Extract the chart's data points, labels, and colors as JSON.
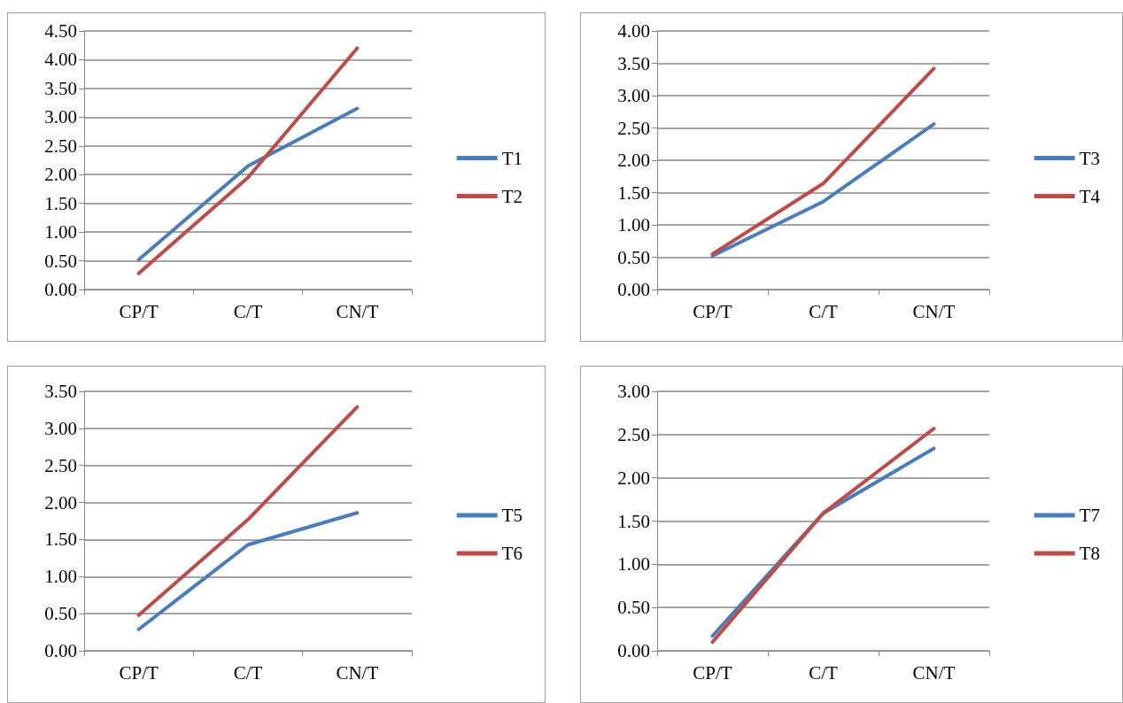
{
  "chart_data": [
    {
      "type": "line",
      "categories": [
        "CP/T",
        "C/T",
        "CN/T"
      ],
      "ylim": [
        0,
        4.5
      ],
      "yticks": [
        {
          "value": 0,
          "label": "0.00"
        },
        {
          "value": 0.5,
          "label": "0.50"
        },
        {
          "value": 1,
          "label": "1.00"
        },
        {
          "value": 1.5,
          "label": "1.50"
        },
        {
          "value": 2,
          "label": "2.00"
        },
        {
          "value": 2.5,
          "label": "2.50"
        },
        {
          "value": 3,
          "label": "3.00"
        },
        {
          "value": 3.5,
          "label": "3.50"
        },
        {
          "value": 4,
          "label": "4.00"
        },
        {
          "value": 4.5,
          "label": "4.50"
        }
      ],
      "grid": "y",
      "legend": "right",
      "marker": "none",
      "line_style": "solid",
      "series": [
        {
          "name": "T1",
          "color": "#4a7ebb",
          "values": [
            0.52,
            2.15,
            3.15
          ]
        },
        {
          "name": "T2",
          "color": "#be4b48",
          "values": [
            0.28,
            1.95,
            4.2
          ]
        }
      ]
    },
    {
      "type": "line",
      "categories": [
        "CP/T",
        "C/T",
        "CN/T"
      ],
      "ylim": [
        0,
        4
      ],
      "yticks": [
        {
          "value": 0,
          "label": "0.00"
        },
        {
          "value": 0.5,
          "label": "0.50"
        },
        {
          "value": 1,
          "label": "1.00"
        },
        {
          "value": 1.5,
          "label": "1.50"
        },
        {
          "value": 2,
          "label": "2.00"
        },
        {
          "value": 2.5,
          "label": "2.50"
        },
        {
          "value": 3,
          "label": "3.00"
        },
        {
          "value": 3.5,
          "label": "3.50"
        },
        {
          "value": 4,
          "label": "4.00"
        }
      ],
      "grid": "y",
      "legend": "right",
      "marker": "none",
      "line_style": "solid",
      "series": [
        {
          "name": "T3",
          "color": "#4a7ebb",
          "values": [
            0.52,
            1.36,
            2.56
          ]
        },
        {
          "name": "T4",
          "color": "#be4b48",
          "values": [
            0.55,
            1.64,
            3.42
          ]
        }
      ]
    },
    {
      "type": "line",
      "categories": [
        "CP/T",
        "C/T",
        "CN/T"
      ],
      "ylim": [
        0,
        3.5
      ],
      "yticks": [
        {
          "value": 0,
          "label": "0.00"
        },
        {
          "value": 0.5,
          "label": "0.50"
        },
        {
          "value": 1,
          "label": "1.00"
        },
        {
          "value": 1.5,
          "label": "1.50"
        },
        {
          "value": 2,
          "label": "2.00"
        },
        {
          "value": 2.5,
          "label": "2.50"
        },
        {
          "value": 3,
          "label": "3.00"
        },
        {
          "value": 3.5,
          "label": "3.50"
        }
      ],
      "grid": "y",
      "legend": "right",
      "marker": "none",
      "line_style": "solid",
      "series": [
        {
          "name": "T5",
          "color": "#4a7ebb",
          "values": [
            0.29,
            1.43,
            1.86
          ]
        },
        {
          "name": "T6",
          "color": "#be4b48",
          "values": [
            0.48,
            1.77,
            3.29
          ]
        }
      ]
    },
    {
      "type": "line",
      "categories": [
        "CP/T",
        "C/T",
        "CN/T"
      ],
      "ylim": [
        0,
        3
      ],
      "yticks": [
        {
          "value": 0,
          "label": "0.00"
        },
        {
          "value": 0.5,
          "label": "0.50"
        },
        {
          "value": 1,
          "label": "1.00"
        },
        {
          "value": 1.5,
          "label": "1.50"
        },
        {
          "value": 2,
          "label": "2.00"
        },
        {
          "value": 2.5,
          "label": "2.50"
        },
        {
          "value": 3,
          "label": "3.00"
        }
      ],
      "grid": "y",
      "legend": "right",
      "marker": "none",
      "line_style": "solid",
      "series": [
        {
          "name": "T7",
          "color": "#4a7ebb",
          "values": [
            0.17,
            1.59,
            2.34
          ]
        },
        {
          "name": "T8",
          "color": "#be4b48",
          "values": [
            0.1,
            1.59,
            2.57
          ]
        }
      ]
    }
  ]
}
